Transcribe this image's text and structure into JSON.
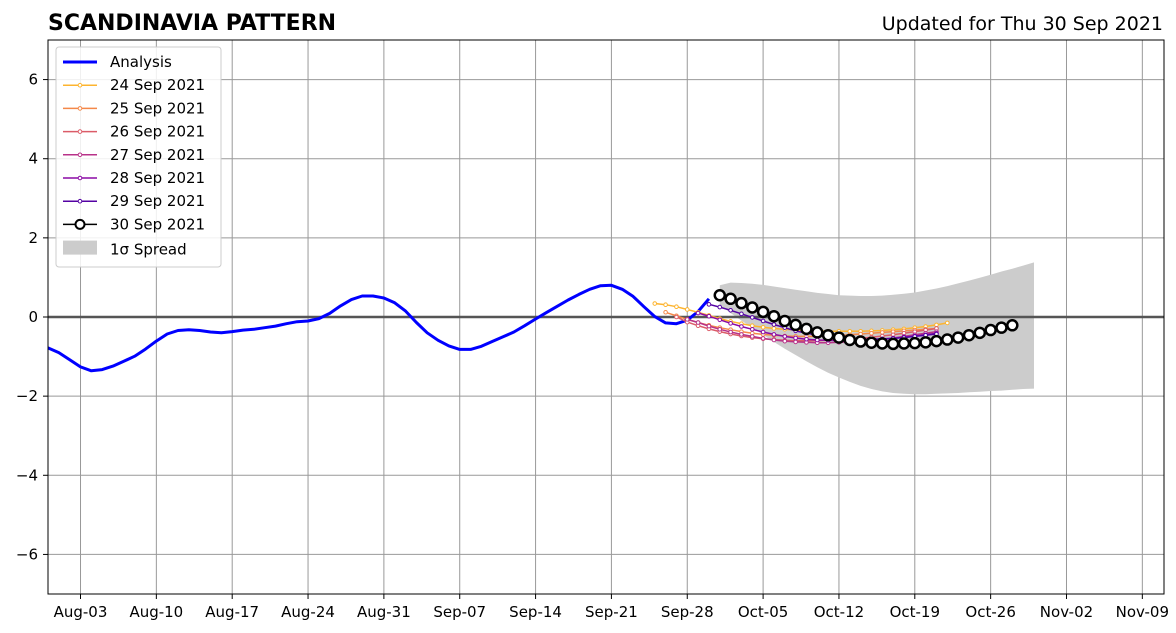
{
  "colors": {
    "analysis": "#0000ff",
    "forecast_30": "#000000",
    "spread": "#cccccc",
    "grid": "#999999",
    "zero_line": "#555555"
  },
  "chart_data": {
    "type": "line",
    "title": "SCANDINAVIA PATTERN",
    "subtitle": "Updated for Thu 30 Sep 2021",
    "xlabel": "",
    "ylabel": "",
    "xlim": [
      "2021-07-31",
      "2021-11-11"
    ],
    "ylim": [
      -7,
      7
    ],
    "grid": true,
    "legend_position": "top-left",
    "x_ticks": [
      {
        "date": "2021-08-03",
        "label": "Aug-03"
      },
      {
        "date": "2021-08-10",
        "label": "Aug-10"
      },
      {
        "date": "2021-08-17",
        "label": "Aug-17"
      },
      {
        "date": "2021-08-24",
        "label": "Aug-24"
      },
      {
        "date": "2021-08-31",
        "label": "Aug-31"
      },
      {
        "date": "2021-09-07",
        "label": "Sep-07"
      },
      {
        "date": "2021-09-14",
        "label": "Sep-14"
      },
      {
        "date": "2021-09-21",
        "label": "Sep-21"
      },
      {
        "date": "2021-09-28",
        "label": "Sep-28"
      },
      {
        "date": "2021-10-05",
        "label": "Oct-05"
      },
      {
        "date": "2021-10-12",
        "label": "Oct-12"
      },
      {
        "date": "2021-10-19",
        "label": "Oct-19"
      },
      {
        "date": "2021-10-26",
        "label": "Oct-26"
      },
      {
        "date": "2021-11-02",
        "label": "Nov-02"
      },
      {
        "date": "2021-11-09",
        "label": "Nov-09"
      }
    ],
    "y_ticks": [
      {
        "value": 6,
        "label": "6"
      },
      {
        "value": 4,
        "label": "4"
      },
      {
        "value": 2,
        "label": "2"
      },
      {
        "value": 0,
        "label": "0"
      },
      {
        "value": -2,
        "label": "−2"
      },
      {
        "value": -4,
        "label": "−4"
      },
      {
        "value": -6,
        "label": "−6"
      }
    ],
    "analysis": {
      "name": "Analysis",
      "color": "#0000ff",
      "start": "2021-07-31",
      "values": [
        -0.78,
        -0.9,
        -1.08,
        -1.26,
        -1.36,
        -1.33,
        -1.24,
        -1.12,
        -0.99,
        -0.81,
        -0.61,
        -0.43,
        -0.34,
        -0.32,
        -0.34,
        -0.38,
        -0.4,
        -0.37,
        -0.33,
        -0.31,
        -0.27,
        -0.23,
        -0.17,
        -0.12,
        -0.1,
        -0.04,
        0.09,
        0.28,
        0.44,
        0.53,
        0.53,
        0.48,
        0.36,
        0.15,
        -0.14,
        -0.4,
        -0.59,
        -0.73,
        -0.82,
        -0.82,
        -0.74,
        -0.62,
        -0.5,
        -0.38,
        -0.22,
        -0.05,
        0.11,
        0.27,
        0.43,
        0.57,
        0.7,
        0.79,
        0.8,
        0.7,
        0.52,
        0.26,
        0.01,
        -0.15,
        -0.17,
        -0.08,
        0.14,
        0.46
      ]
    },
    "forecasts": [
      {
        "name": "24 Sep 2021",
        "color": "#fdb42f",
        "start": "2021-09-25",
        "values": [
          0.34,
          0.31,
          0.26,
          0.19,
          0.12,
          0.04,
          -0.04,
          -0.11,
          -0.17,
          -0.22,
          -0.26,
          -0.29,
          -0.31,
          -0.33,
          -0.34,
          -0.35,
          -0.36,
          -0.36,
          -0.36,
          -0.36,
          -0.35,
          -0.34,
          -0.32,
          -0.3,
          -0.27,
          -0.24,
          -0.2,
          -0.15
        ]
      },
      {
        "name": "25 Sep 2021",
        "color": "#f48849",
        "start": "2021-09-26",
        "values": [
          0.12,
          0.03,
          -0.06,
          -0.14,
          -0.21,
          -0.27,
          -0.32,
          -0.37,
          -0.41,
          -0.44,
          -0.46,
          -0.48,
          -0.49,
          -0.49,
          -0.49,
          -0.48,
          -0.47,
          -0.45,
          -0.43,
          -0.41,
          -0.39,
          -0.37,
          -0.35,
          -0.33,
          -0.31,
          -0.29
        ]
      },
      {
        "name": "26 Sep 2021",
        "color": "#db5c68",
        "start": "2021-09-27",
        "values": [
          0.0,
          -0.13,
          -0.22,
          -0.3,
          -0.37,
          -0.43,
          -0.48,
          -0.52,
          -0.55,
          -0.57,
          -0.59,
          -0.6,
          -0.6,
          -0.6,
          -0.59,
          -0.58,
          -0.56,
          -0.54,
          -0.51,
          -0.48,
          -0.45,
          -0.41,
          -0.37,
          -0.33,
          -0.29
        ]
      },
      {
        "name": "27 Sep 2021",
        "color": "#b83289",
        "start": "2021-09-28",
        "values": [
          -0.06,
          -0.14,
          -0.23,
          -0.31,
          -0.38,
          -0.44,
          -0.49,
          -0.54,
          -0.58,
          -0.61,
          -0.63,
          -0.64,
          -0.65,
          -0.65,
          -0.64,
          -0.63,
          -0.61,
          -0.59,
          -0.56,
          -0.53,
          -0.49,
          -0.45,
          -0.41,
          -0.37
        ]
      },
      {
        "name": "28 Sep 2021",
        "color": "#8b0aa5",
        "start": "2021-09-29",
        "values": [
          0.1,
          0.02,
          -0.07,
          -0.16,
          -0.24,
          -0.31,
          -0.38,
          -0.44,
          -0.49,
          -0.53,
          -0.56,
          -0.58,
          -0.59,
          -0.6,
          -0.6,
          -0.59,
          -0.58,
          -0.56,
          -0.54,
          -0.51,
          -0.48,
          -0.45,
          -0.41
        ]
      },
      {
        "name": "29 Sep 2021",
        "color": "#5402a3",
        "start": "2021-09-30",
        "values": [
          0.32,
          0.25,
          0.17,
          0.08,
          -0.01,
          -0.1,
          -0.19,
          -0.27,
          -0.35,
          -0.41,
          -0.46,
          -0.5,
          -0.53,
          -0.55,
          -0.56,
          -0.56,
          -0.55,
          -0.54,
          -0.52,
          -0.49,
          -0.46,
          -0.43
        ]
      },
      {
        "name": "30 Sep 2021",
        "color": "#000000",
        "start": "2021-10-01",
        "values": [
          0.55,
          0.46,
          0.35,
          0.24,
          0.13,
          0.02,
          -0.1,
          -0.2,
          -0.3,
          -0.39,
          -0.46,
          -0.52,
          -0.58,
          -0.62,
          -0.65,
          -0.67,
          -0.68,
          -0.67,
          -0.66,
          -0.64,
          -0.61,
          -0.57,
          -0.52,
          -0.46,
          -0.4,
          -0.33,
          -0.27,
          -0.21
        ]
      }
    ],
    "spread": {
      "name": "1σ Spread",
      "color": "#cccccc",
      "start": "2021-10-01",
      "upper": [
        0.8,
        0.87,
        0.86,
        0.84,
        0.81,
        0.77,
        0.73,
        0.69,
        0.65,
        0.61,
        0.58,
        0.55,
        0.54,
        0.53,
        0.53,
        0.54,
        0.56,
        0.59,
        0.62,
        0.67,
        0.72,
        0.78,
        0.85,
        0.92,
        0.99,
        1.07,
        1.15,
        1.22,
        1.3,
        1.38
      ],
      "lower": [
        0.3,
        0.1,
        -0.09,
        -0.27,
        -0.45,
        -0.63,
        -0.8,
        -0.96,
        -1.12,
        -1.27,
        -1.41,
        -1.53,
        -1.64,
        -1.74,
        -1.82,
        -1.88,
        -1.92,
        -1.94,
        -1.95,
        -1.95,
        -1.94,
        -1.93,
        -1.92,
        -1.9,
        -1.89,
        -1.87,
        -1.86,
        -1.84,
        -1.82,
        -1.81
      ]
    }
  }
}
